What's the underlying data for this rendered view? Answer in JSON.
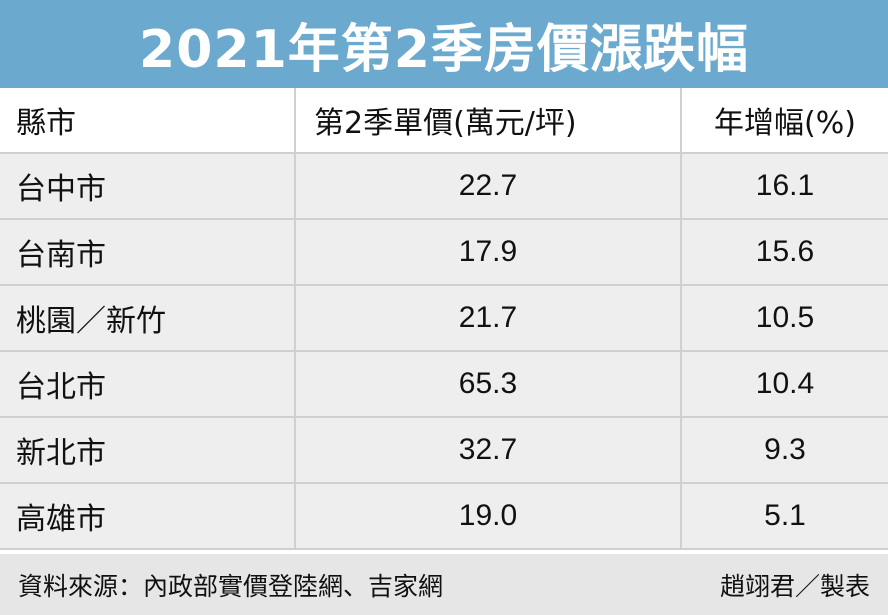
{
  "title": "2021年第2季房價漲跌幅",
  "columns": [
    "縣市",
    "第2季單價(萬元/坪)",
    "年增幅(%)"
  ],
  "rows": [
    {
      "city": "台中市",
      "price": "22.7",
      "growth": "16.1"
    },
    {
      "city": "台南市",
      "price": "17.9",
      "growth": "15.6"
    },
    {
      "city": "桃園／新竹",
      "price": "21.7",
      "growth": "10.5"
    },
    {
      "city": "台北市",
      "price": "65.3",
      "growth": "10.4"
    },
    {
      "city": "新北市",
      "price": "32.7",
      "growth": "9.3"
    },
    {
      "city": "高雄市",
      "price": "19.0",
      "growth": "5.1"
    }
  ],
  "footer": {
    "source": "資料來源：內政部實價登陸網、吉家網",
    "credit": "趙翊君／製表"
  },
  "colors": {
    "title_bg": "#6ba9cf",
    "row_shade": "#eeeeee",
    "footer_bg": "#e6e6e6"
  }
}
